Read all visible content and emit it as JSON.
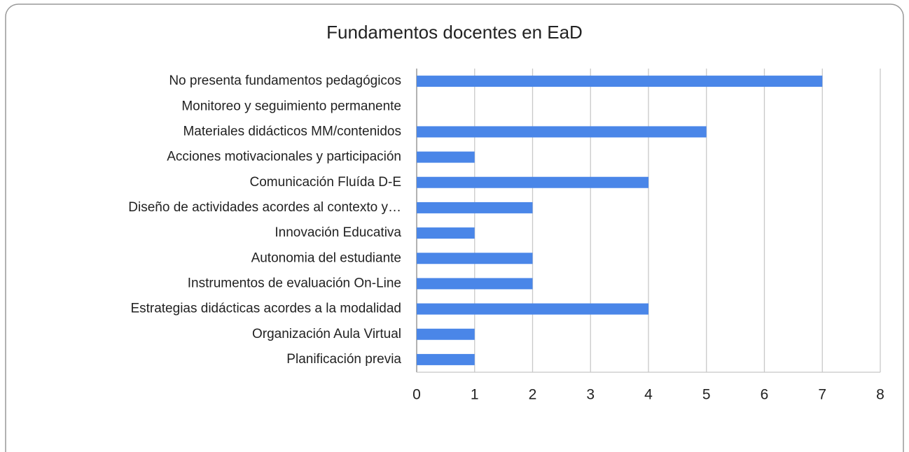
{
  "chart_data": {
    "type": "bar",
    "orientation": "horizontal",
    "title": "Fundamentos docentes en EaD",
    "categories": [
      "No presenta fundamentos pedagógicos",
      "Monitoreo y seguimiento permanente",
      "Materiales didácticos MM/contenidos",
      "Acciones motivacionales y participación",
      "Comunicación Fluída D-E",
      "Diseño de actividades acordes al contexto y…",
      "Innovación Educativa",
      "Autonomia del estudiante",
      "Instrumentos de evaluación On-Line",
      "Estrategias didácticas acordes a la modalidad",
      "Organización Aula Virtual",
      "Planificación previa"
    ],
    "values": [
      7,
      0,
      5,
      1,
      4,
      2,
      1,
      2,
      2,
      4,
      1,
      1
    ],
    "color": "#4a86e8",
    "xlim": [
      0,
      8
    ],
    "xticks": [
      0,
      1,
      2,
      3,
      4,
      5,
      6,
      7,
      8
    ],
    "grid": true
  }
}
